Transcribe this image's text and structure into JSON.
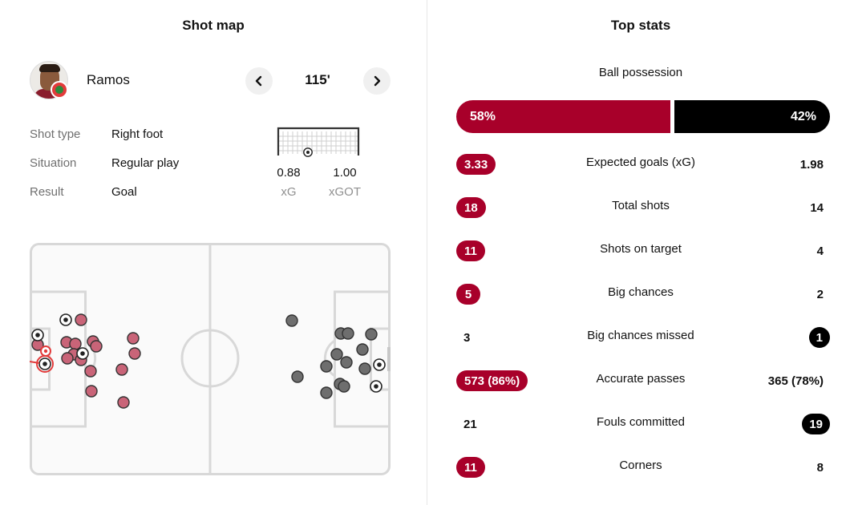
{
  "shot_map": {
    "title": "Shot map",
    "player_name": "Ramos",
    "minute": "115'",
    "details": [
      {
        "label": "Shot type",
        "value": "Right foot"
      },
      {
        "label": "Situation",
        "value": "Regular play"
      },
      {
        "label": "Result",
        "value": "Goal"
      }
    ],
    "xg_value": "0.88",
    "xg_label": "xG",
    "xgot_value": "1.00",
    "xgot_label": "xGOT",
    "colors": {
      "home": "#c96478",
      "away": "#6e6e6e",
      "selected": "#e23b3b"
    }
  },
  "top_stats": {
    "title": "Top stats",
    "possession": {
      "label": "Ball possession",
      "home": "58%",
      "away": "42%",
      "home_pct": 58,
      "away_pct": 42
    },
    "rows": [
      {
        "label": "Expected goals (xG)",
        "home": "3.33",
        "away": "1.98",
        "highlight": "home"
      },
      {
        "label": "Total shots",
        "home": "18",
        "away": "14",
        "highlight": "home"
      },
      {
        "label": "Shots on target",
        "home": "11",
        "away": "4",
        "highlight": "home"
      },
      {
        "label": "Big chances",
        "home": "5",
        "away": "2",
        "highlight": "home"
      },
      {
        "label": "Big chances missed",
        "home": "3",
        "away": "1",
        "highlight": "away"
      },
      {
        "label": "Accurate passes",
        "home": "573 (86%)",
        "away": "365 (78%)",
        "highlight": "home"
      },
      {
        "label": "Fouls committed",
        "home": "21",
        "away": "19",
        "highlight": "away"
      },
      {
        "label": "Corners",
        "home": "11",
        "away": "8",
        "highlight": "home"
      }
    ],
    "colors": {
      "home": "#a8002a",
      "away": "#000000"
    }
  }
}
